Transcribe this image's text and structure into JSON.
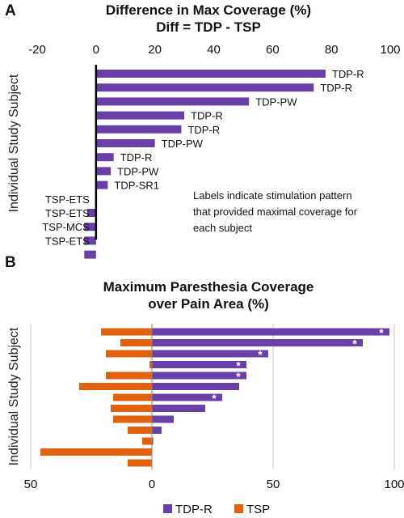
{
  "colors": {
    "tdp": "#6a40a8",
    "tsp": "#e0620e",
    "axis": "#000000",
    "grid": "#c8c8c8"
  },
  "chart_data": [
    {
      "type": "bar",
      "orientation": "horizontal",
      "panel": "A",
      "title_lines": [
        "Difference in Max Coverage (%)",
        "Diff = TDP - TSP"
      ],
      "ylabel": "Individual Study Subject",
      "xlim": [
        -20,
        100
      ],
      "xticks": [
        -20,
        0,
        20,
        40,
        60,
        80,
        100
      ],
      "grid": false,
      "values": [
        78,
        74,
        52,
        30,
        29,
        20,
        6,
        5,
        4,
        0,
        -3,
        -4,
        -4,
        -4
      ],
      "bar_labels": [
        "TDP-R",
        "TDP-R",
        "TDP-PW",
        "TDP-R",
        "TDP-R",
        "TDP-PW",
        "TDP-R",
        "TDP-PW",
        "TDP-SR1",
        "TSP-ETS",
        "TSP-ETS",
        "TSP-MCS",
        "TSP-ETS",
        ""
      ],
      "note_lines": [
        "Labels indicate stimulation pattern",
        "that provided maximal coverage for",
        "each subject"
      ]
    },
    {
      "type": "bar",
      "orientation": "horizontal",
      "panel": "B",
      "title_lines": [
        "Maximum Paresthesia Coverage",
        "over Pain Area (%)"
      ],
      "ylabel": "Individual Study Subject",
      "xlim": [
        -50,
        100
      ],
      "xticks": [
        -50,
        0,
        50,
        100
      ],
      "xtick_labels": [
        "50",
        "0",
        "50",
        "100"
      ],
      "grid": true,
      "legend_position": "bottom",
      "series": [
        {
          "name": "TDP-R",
          "values": [
            98,
            87,
            48,
            39,
            39,
            36,
            29,
            22,
            9,
            4,
            0.5,
            0,
            0
          ]
        },
        {
          "name": "TSP",
          "values": [
            21,
            13,
            19,
            1,
            19,
            30,
            16,
            17,
            16,
            10,
            4,
            46,
            10
          ]
        }
      ],
      "significant": [
        true,
        true,
        true,
        true,
        true,
        false,
        true,
        false,
        false,
        false,
        false,
        false,
        false
      ]
    }
  ]
}
